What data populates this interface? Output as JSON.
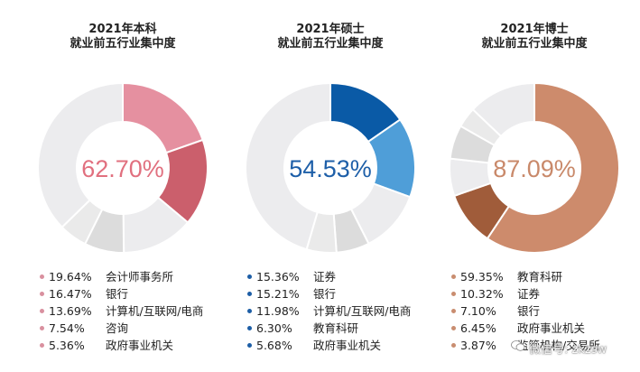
{
  "chart_data": [
    {
      "type": "pie",
      "title_lines": [
        "2021年本科",
        "就业前五行业集中度"
      ],
      "center_label": "62.70%",
      "accent": "#e1707f",
      "categories": [
        "会计师事务所",
        "银行",
        "计算机/互联网/电商",
        "咨询",
        "政府事业机关"
      ],
      "values": [
        19.64,
        16.47,
        13.69,
        7.54,
        5.36
      ],
      "value_labels": [
        "19.64%",
        "16.47%",
        "13.69%",
        "7.54%",
        "5.36%"
      ],
      "slice_colors": [
        "#e590a0",
        "#cb5f6c",
        "#ececee",
        "#dcdcdc",
        "#eaeaea"
      ],
      "dot_color": "#d9909f"
    },
    {
      "type": "pie",
      "title_lines": [
        "2021年硕士",
        "就业前五行业集中度"
      ],
      "center_label": "54.53%",
      "accent": "#1e5fa8",
      "categories": [
        "证券",
        "银行",
        "计算机/互联网/电商",
        "教育科研",
        "政府事业机关"
      ],
      "values": [
        15.36,
        15.21,
        11.98,
        6.3,
        5.68
      ],
      "value_labels": [
        "15.36%",
        "15.21%",
        "11.98%",
        "6.30%",
        "5.68%"
      ],
      "slice_colors": [
        "#0a5aa6",
        "#4f9ed8",
        "#ececee",
        "#dcdcdc",
        "#eaeaea"
      ],
      "dot_color": "#1d5ea6"
    },
    {
      "type": "pie",
      "title_lines": [
        "2021年博士",
        "就业前五行业集中度"
      ],
      "center_label": "87.09%",
      "accent": "#c9896a",
      "categories": [
        "教育科研",
        "证券",
        "银行",
        "政府事业机关",
        "监管机构/交易所"
      ],
      "values": [
        59.35,
        10.32,
        7.1,
        6.45,
        3.87
      ],
      "value_labels": [
        "59.35%",
        "10.32%",
        "7.10%",
        "6.45%",
        "3.87%"
      ],
      "slice_colors": [
        "#cd8b6c",
        "#a05c3a",
        "#ececee",
        "#dcdcdc",
        "#eaeaea"
      ],
      "dot_color": "#c98d70"
    }
  ],
  "watermark": "微信号: zkzsw"
}
